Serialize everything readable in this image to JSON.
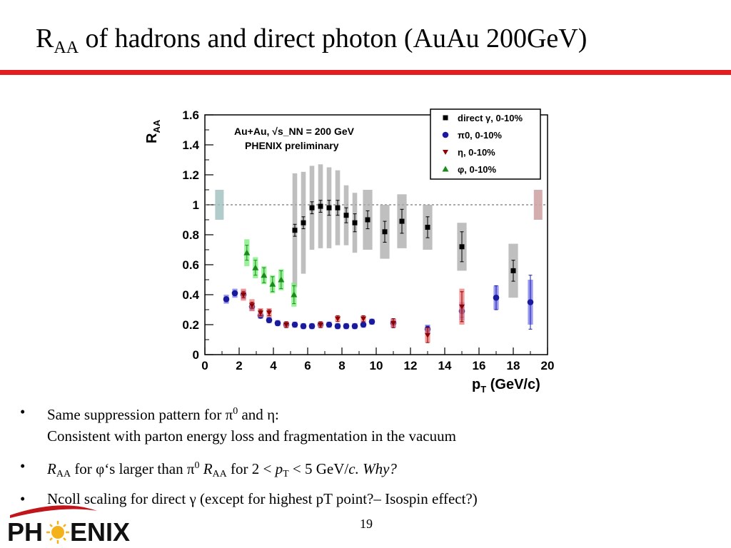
{
  "slide": {
    "title_main": "R",
    "title_sub": "AA",
    "title_rest": " of hadrons and direct photon (AuAu 200GeV)",
    "page_number": "19",
    "logo_text": "PH ENIX"
  },
  "bullets": [
    {
      "parts": [
        "Same suppression pattern for ",
        "π",
        "0",
        " and ",
        "η",
        ":"
      ],
      "line2": "Consistent with parton energy loss and fragmentation  in the vacuum"
    },
    {
      "parts": [
        "R",
        "AA",
        " for ",
        "φ",
        "‘s larger than ",
        "π",
        "0",
        " ",
        "R",
        "AA",
        " for 2 < ",
        "p",
        "T",
        " < 5 GeV/",
        "c",
        ". ",
        "Why?"
      ]
    },
    {
      "parts": [
        "Ncoll scaling for direct ",
        "γ",
        " (except for highest pT point?– Isospin effect?)"
      ]
    }
  ],
  "colors": {
    "accent": "#e41e1e",
    "direct": "#000000",
    "pi0": "#1a1a9e",
    "eta": "#8b0000",
    "phi": "#1a8a1a"
  },
  "chart_data": {
    "type": "scatter",
    "title": "",
    "xlabel": "p_T (GeV/c)",
    "ylabel": "R_AA",
    "xlim": [
      0,
      20
    ],
    "ylim": [
      0,
      1.6
    ],
    "xticks": [
      0,
      2,
      4,
      6,
      8,
      10,
      12,
      14,
      16,
      18,
      20
    ],
    "yticks": [
      0,
      0.2,
      0.4,
      0.6,
      0.8,
      1,
      1.2,
      1.4,
      1.6
    ],
    "reference_line": 1,
    "annotation_lines": [
      "Au+Au, √s_NN = 200 GeV",
      "PHENIX preliminary"
    ],
    "legend_position": "top-right",
    "series": [
      {
        "name": "direct γ, 0-10%",
        "marker": "square",
        "color": "#000000",
        "band_color": "#aaaaaa",
        "x": [
          5.25,
          5.75,
          6.25,
          6.75,
          7.25,
          7.75,
          8.25,
          8.75,
          9.5,
          10.5,
          11.5,
          13,
          15,
          18
        ],
        "y": [
          0.83,
          0.88,
          0.98,
          0.99,
          0.98,
          0.98,
          0.93,
          0.88,
          0.9,
          0.82,
          0.89,
          0.85,
          0.72,
          0.56
        ],
        "err": [
          0.04,
          0.04,
          0.04,
          0.04,
          0.05,
          0.05,
          0.05,
          0.06,
          0.06,
          0.07,
          0.08,
          0.07,
          0.1,
          0.07
        ],
        "sys": [
          0.38,
          0.34,
          0.28,
          0.28,
          0.27,
          0.25,
          0.2,
          0.2,
          0.2,
          0.18,
          0.18,
          0.15,
          0.16,
          0.18
        ]
      },
      {
        "name": "π0, 0-10%",
        "marker": "circle",
        "color": "#1a1a9e",
        "band_color": "#7777ee",
        "x": [
          1.25,
          1.75,
          2.25,
          2.75,
          3.25,
          3.75,
          4.25,
          4.75,
          5.25,
          5.75,
          6.25,
          6.75,
          7.25,
          7.75,
          8.25,
          8.75,
          9.25,
          9.75,
          11,
          13,
          15,
          17,
          19
        ],
        "y": [
          0.37,
          0.41,
          0.4,
          0.32,
          0.26,
          0.23,
          0.21,
          0.2,
          0.2,
          0.19,
          0.19,
          0.2,
          0.2,
          0.19,
          0.19,
          0.19,
          0.2,
          0.22,
          0.21,
          0.17,
          0.29,
          0.38,
          0.35
        ],
        "err": [
          0.01,
          0.01,
          0.01,
          0.01,
          0.01,
          0.01,
          0.01,
          0.01,
          0.01,
          0.01,
          0.01,
          0.01,
          0.01,
          0.01,
          0.01,
          0.01,
          0.01,
          0.01,
          0.03,
          0.02,
          0.04,
          0.08,
          0.18
        ],
        "sys": [
          0.03,
          0.03,
          0.03,
          0.03,
          0.02,
          0.02,
          0.02,
          0.02,
          0.02,
          0.02,
          0.02,
          0.02,
          0.02,
          0.02,
          0.02,
          0.02,
          0.02,
          0.02,
          0.03,
          0.03,
          0.06,
          0.08,
          0.15
        ]
      },
      {
        "name": "η, 0-10%",
        "marker": "triangle-down",
        "color": "#8b0000",
        "band_color": "#ee7777",
        "x": [
          2.25,
          2.75,
          3.25,
          3.75,
          4.75,
          6.75,
          7.75,
          9.25,
          11,
          13,
          15
        ],
        "y": [
          0.4,
          0.33,
          0.28,
          0.28,
          0.2,
          0.2,
          0.24,
          0.24,
          0.21,
          0.13,
          0.32
        ],
        "err": [
          0.02,
          0.02,
          0.02,
          0.02,
          0.02,
          0.02,
          0.02,
          0.02,
          0.03,
          0.05,
          0.1
        ],
        "sys": [
          0.04,
          0.04,
          0.03,
          0.03,
          0.02,
          0.02,
          0.02,
          0.02,
          0.03,
          0.05,
          0.12
        ]
      },
      {
        "name": "φ, 0-10%",
        "marker": "triangle-up",
        "color": "#1a8a1a",
        "band_color": "#77ee77",
        "x": [
          2.45,
          2.95,
          3.45,
          3.95,
          4.45,
          5.2
        ],
        "y": [
          0.68,
          0.58,
          0.53,
          0.47,
          0.5,
          0.4
        ],
        "err": [
          0.05,
          0.05,
          0.05,
          0.05,
          0.06,
          0.06
        ],
        "sys": [
          0.09,
          0.07,
          0.06,
          0.06,
          0.07,
          0.08
        ]
      }
    ]
  }
}
